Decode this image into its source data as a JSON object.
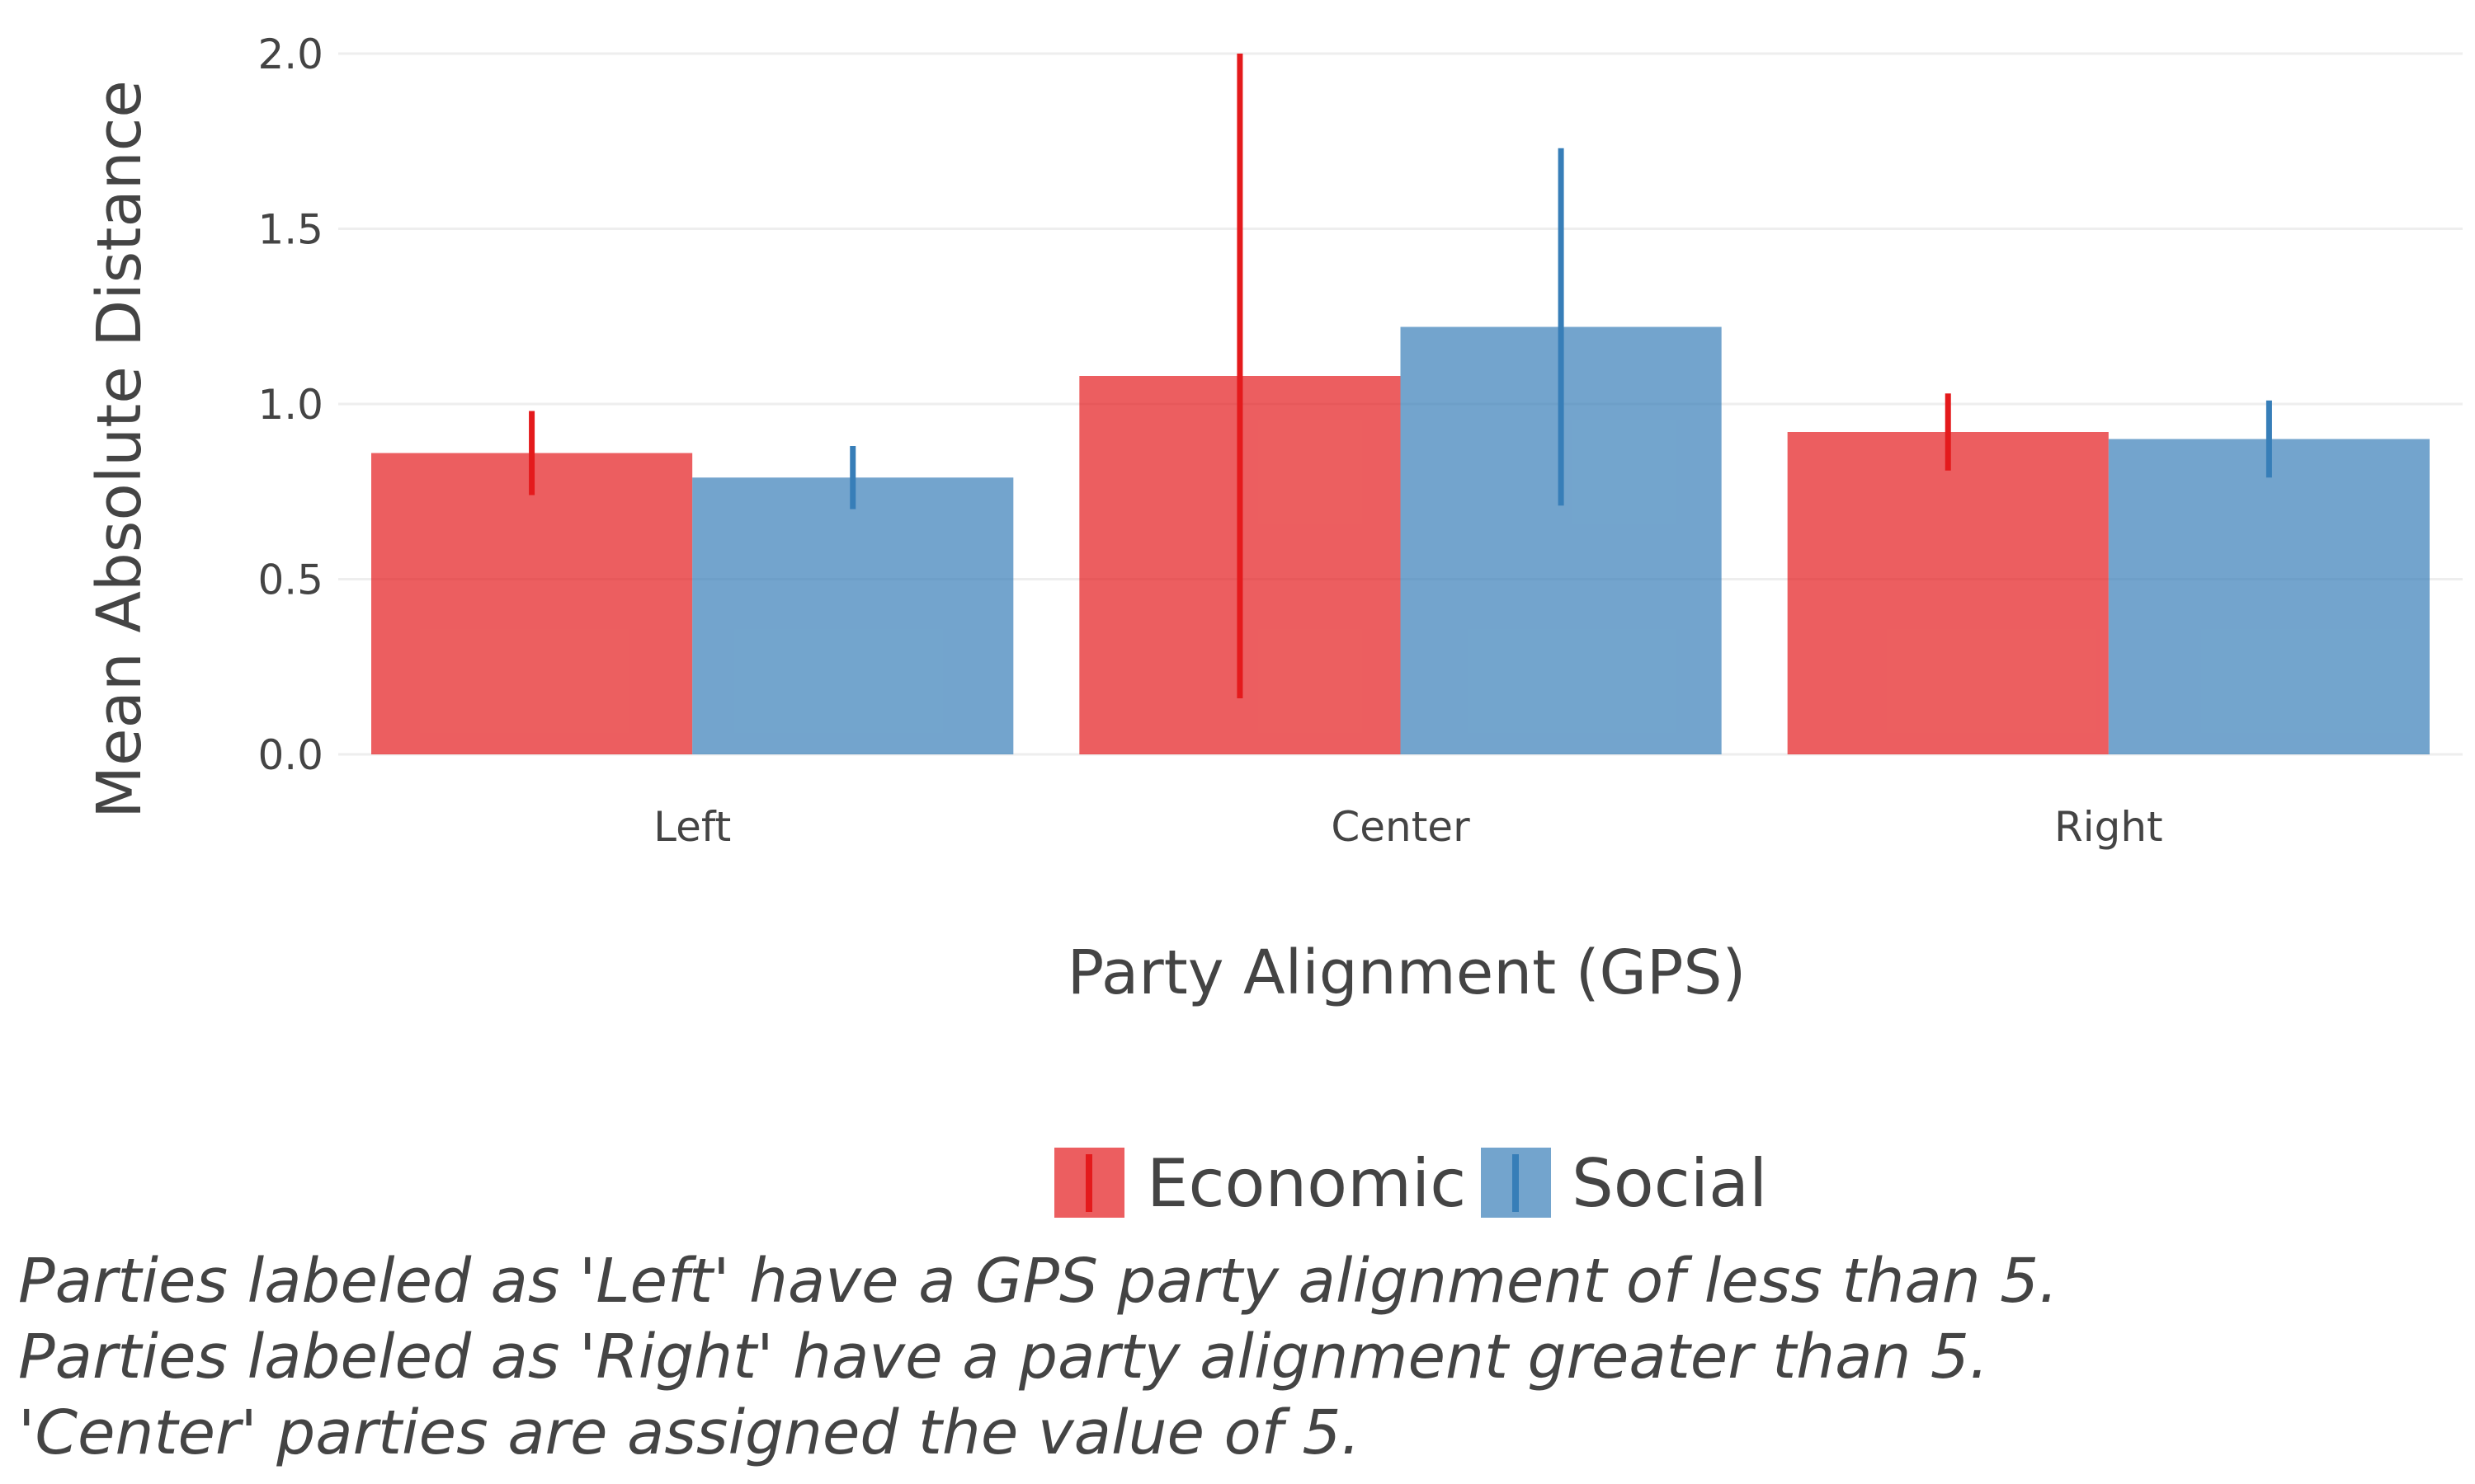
{
  "chart_data": {
    "type": "bar",
    "title": "",
    "xlabel": "Party Alignment (GPS)",
    "ylabel": "Mean Absolute Distance",
    "categories": [
      "Left",
      "Center",
      "Right"
    ],
    "ylim": [
      0,
      2.0
    ],
    "yticks": [
      "0.0",
      "0.5",
      "1.0",
      "1.5",
      "2.0"
    ],
    "grid": true,
    "legend_position": "bottom-center",
    "series": [
      {
        "name": "Economic",
        "color": "#E41A1C",
        "values": [
          0.86,
          1.08,
          0.92
        ],
        "error_low": [
          0.74,
          0.16,
          0.81
        ],
        "error_high": [
          0.98,
          2.0,
          1.03
        ]
      },
      {
        "name": "Social",
        "color": "#377EB8",
        "values": [
          0.79,
          1.22,
          0.9
        ],
        "error_low": [
          0.7,
          0.71,
          0.79
        ],
        "error_high": [
          0.88,
          1.73,
          1.01
        ]
      }
    ]
  },
  "caption": {
    "lines": [
      "Parties labeled as 'Left' have a GPS party alignment of less than 5.",
      "Parties labeled as 'Right' have a party alignment greater than 5.",
      "'Center' parties are assigned the value of 5."
    ]
  }
}
